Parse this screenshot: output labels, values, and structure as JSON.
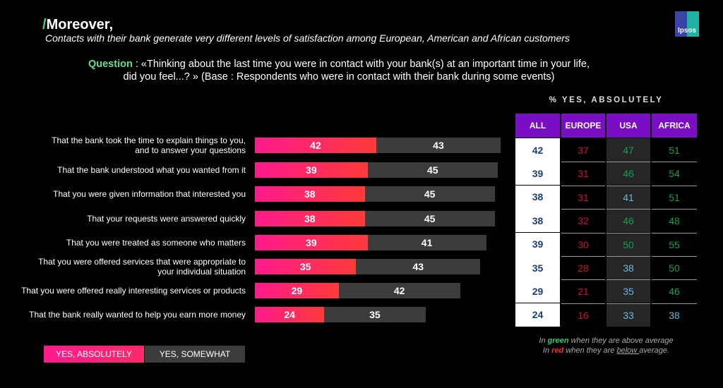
{
  "header": {
    "title": "Moreover,",
    "slash": "/",
    "subtitle": "Contacts with their bank generate very different levels of satisfaction among European, American and African customers",
    "question_label": "Question",
    "question_line1": " : «Thinking about the last time you were in contact with your bank(s) at an important time in your life,",
    "question_line2": "did you feel...? » (Base : Respondents who were in contact with their bank during some events)",
    "logo": "Ipsos"
  },
  "colors": {
    "absolutely": "#ff1a8c",
    "somewhat": "#3c3c3c",
    "header": "#7a0ec4",
    "all": "#1b3f7a",
    "below": "#d4093f",
    "above": "#11a04f",
    "neutral": "#6ab8dc"
  },
  "chart_data": {
    "type": "bar",
    "stacked": true,
    "orientation": "horizontal",
    "categories": [
      "That the bank took the time to explain things to you,\nand to answer your questions",
      "That the bank understood what you wanted from it",
      "That you were given information that interested you",
      "That your requests were answered quickly",
      "That you were treated as someone who matters",
      "That you were offered services that were appropriate to\nyour individual situation",
      "That you were offered really interesting services or products",
      "That the bank really wanted to help you earn more money"
    ],
    "series": [
      {
        "name": "YES, ABSOLUTELY",
        "values": [
          42,
          39,
          38,
          38,
          39,
          35,
          29,
          24
        ]
      },
      {
        "name": "YES, SOMEWHAT",
        "values": [
          43,
          45,
          45,
          45,
          41,
          43,
          42,
          35
        ]
      }
    ],
    "legend": "bottom-left",
    "table": {
      "title": "% YES, ABSOLUTELY",
      "columns": [
        "ALL",
        "EUROPE",
        "USA",
        "AFRICA"
      ],
      "rows": [
        [
          42,
          37,
          47,
          51
        ],
        [
          39,
          31,
          46,
          54
        ],
        [
          38,
          31,
          41,
          51
        ],
        [
          38,
          32,
          46,
          48
        ],
        [
          39,
          30,
          50,
          55
        ],
        [
          35,
          28,
          38,
          50
        ],
        [
          29,
          21,
          35,
          46
        ],
        [
          24,
          16,
          33,
          38
        ]
      ],
      "status": [
        [
          "all",
          "below",
          "above",
          "above"
        ],
        [
          "all",
          "below",
          "above",
          "above"
        ],
        [
          "all",
          "below",
          "neutral",
          "above"
        ],
        [
          "all",
          "below",
          "above",
          "above"
        ],
        [
          "all",
          "below",
          "above",
          "above"
        ],
        [
          "all",
          "below",
          "neutral",
          "above"
        ],
        [
          "all",
          "below",
          "neutral",
          "above"
        ],
        [
          "all",
          "below",
          "neutral",
          "neutral"
        ]
      ]
    },
    "note": {
      "l1a": "In ",
      "l1g": "green",
      "l1b": " when they are above average",
      "l2a": "In ",
      "l2r": "red",
      "l2b": " when they are ",
      "l2u": "below ",
      "l2c": "average."
    }
  }
}
